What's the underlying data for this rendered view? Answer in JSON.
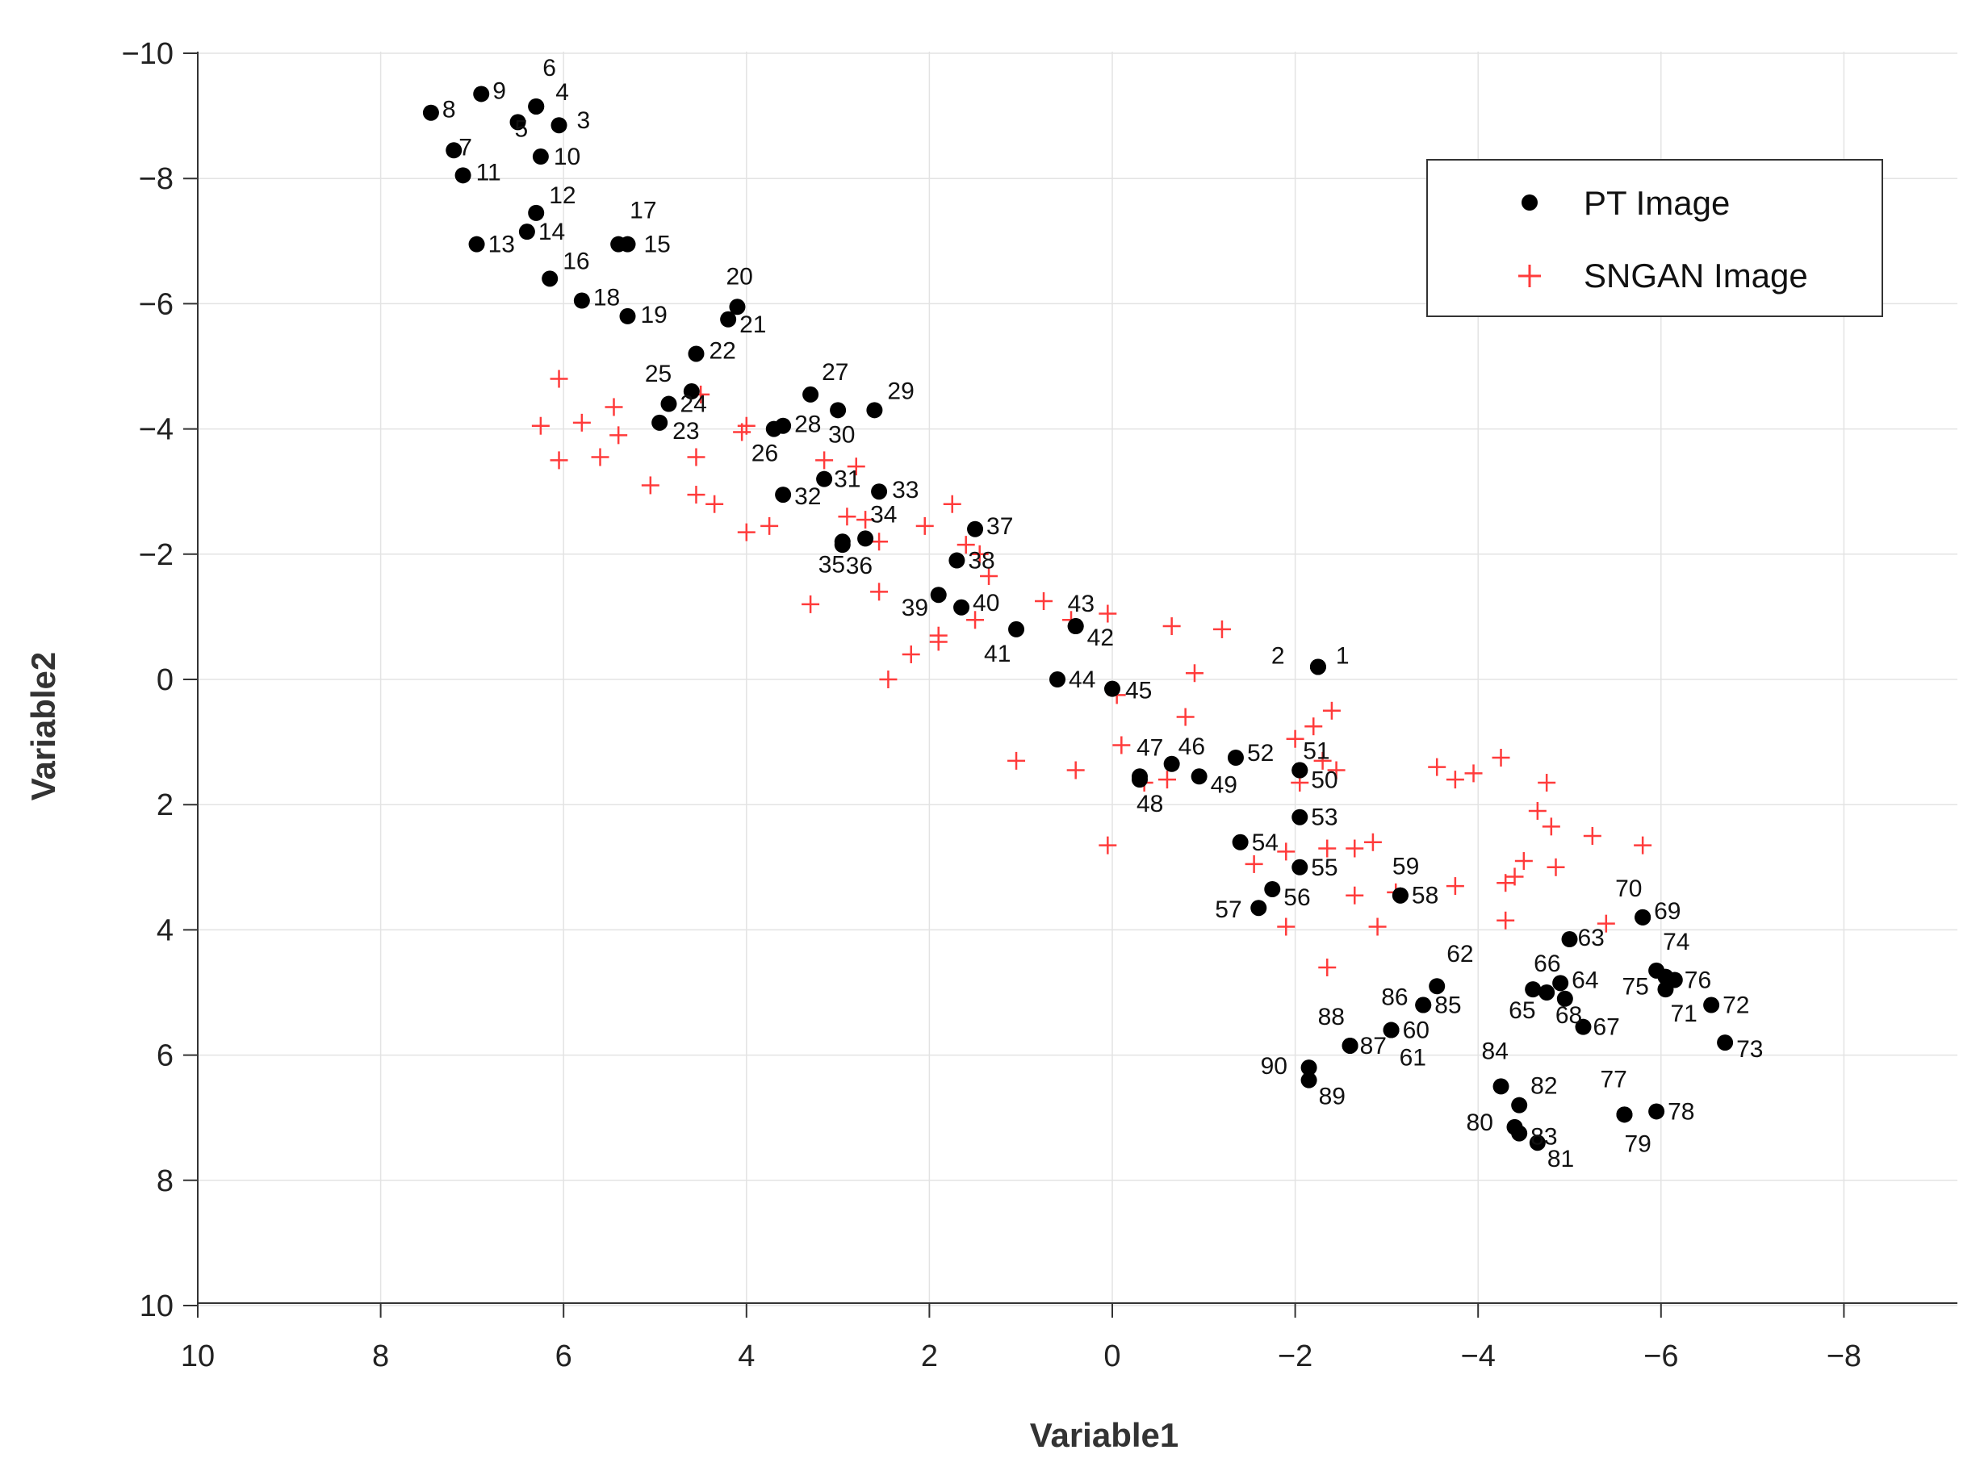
{
  "chart_data": {
    "type": "scatter",
    "xlabel": "Variable1",
    "ylabel": "Variable2",
    "xlim": [
      10,
      -9.2
    ],
    "ylim": [
      -10,
      10
    ],
    "x_reversed": true,
    "y_reversed": true,
    "grid": true,
    "legend_position": "top-right",
    "xticks": [
      10,
      8,
      6,
      4,
      2,
      0,
      -2,
      -4,
      -6,
      -8
    ],
    "yticks": [
      -10,
      -8,
      -6,
      -4,
      -2,
      0,
      2,
      4,
      6,
      8,
      10
    ],
    "xtick_labels": [
      "10",
      "8",
      "6",
      "4",
      "2",
      "0",
      "−2",
      "−4",
      "−6",
      "−8"
    ],
    "ytick_labels": [
      "−10",
      "−8",
      "−6",
      "−4",
      "−2",
      "0",
      "2",
      "4",
      "6",
      "8",
      "10"
    ],
    "series": [
      {
        "name": "PT Image",
        "marker": "dot",
        "color": "#000000",
        "points": [
          {
            "id": "1",
            "x": -2.25,
            "y": -0.2
          },
          {
            "id": "2",
            "x": -2.25,
            "y": -0.2
          },
          {
            "id": "3",
            "x": 6.05,
            "y": -8.85
          },
          {
            "id": "4",
            "x": 6.3,
            "y": -9.15
          },
          {
            "id": "5",
            "x": 6.5,
            "y": -8.9
          },
          {
            "id": "6",
            "x": 6.3,
            "y": -9.15
          },
          {
            "id": "7",
            "x": 7.2,
            "y": -8.45
          },
          {
            "id": "8",
            "x": 7.45,
            "y": -9.05
          },
          {
            "id": "9",
            "x": 6.9,
            "y": -9.35
          },
          {
            "id": "10",
            "x": 6.25,
            "y": -8.35
          },
          {
            "id": "11",
            "x": 7.1,
            "y": -8.05
          },
          {
            "id": "12",
            "x": 6.3,
            "y": -7.45
          },
          {
            "id": "13",
            "x": 6.95,
            "y": -6.95
          },
          {
            "id": "14",
            "x": 6.4,
            "y": -7.15
          },
          {
            "id": "15",
            "x": 5.3,
            "y": -6.95
          },
          {
            "id": "16",
            "x": 6.15,
            "y": -6.4
          },
          {
            "id": "17",
            "x": 5.4,
            "y": -6.95
          },
          {
            "id": "18",
            "x": 5.8,
            "y": -6.05
          },
          {
            "id": "19",
            "x": 5.3,
            "y": -5.8
          },
          {
            "id": "20",
            "x": 4.1,
            "y": -5.95
          },
          {
            "id": "21",
            "x": 4.2,
            "y": -5.75
          },
          {
            "id": "22",
            "x": 4.55,
            "y": -5.2
          },
          {
            "id": "23",
            "x": 4.95,
            "y": -4.1
          },
          {
            "id": "24",
            "x": 4.85,
            "y": -4.4
          },
          {
            "id": "25",
            "x": 4.6,
            "y": -4.6
          },
          {
            "id": "26",
            "x": 3.7,
            "y": -4.0
          },
          {
            "id": "27",
            "x": 3.3,
            "y": -4.55
          },
          {
            "id": "28",
            "x": 3.6,
            "y": -4.05
          },
          {
            "id": "29",
            "x": 2.6,
            "y": -4.3
          },
          {
            "id": "30",
            "x": 3.0,
            "y": -4.3
          },
          {
            "id": "31",
            "x": 3.15,
            "y": -3.2
          },
          {
            "id": "32",
            "x": 3.6,
            "y": -2.95
          },
          {
            "id": "33",
            "x": 2.55,
            "y": -3.0
          },
          {
            "id": "34",
            "x": 2.7,
            "y": -2.25
          },
          {
            "id": "35",
            "x": 2.95,
            "y": -2.2
          },
          {
            "id": "36",
            "x": 2.95,
            "y": -2.15
          },
          {
            "id": "37",
            "x": 1.5,
            "y": -2.4
          },
          {
            "id": "38",
            "x": 1.7,
            "y": -1.9
          },
          {
            "id": "39",
            "x": 1.9,
            "y": -1.35
          },
          {
            "id": "40",
            "x": 1.65,
            "y": -1.15
          },
          {
            "id": "41",
            "x": 1.05,
            "y": -0.8
          },
          {
            "id": "42",
            "x": 0.4,
            "y": -0.85
          },
          {
            "id": "43",
            "x": 0.4,
            "y": -0.85
          },
          {
            "id": "44",
            "x": 0.6,
            "y": 0.0
          },
          {
            "id": "45",
            "x": 0.0,
            "y": 0.15
          },
          {
            "id": "46",
            "x": -0.65,
            "y": 1.35
          },
          {
            "id": "47",
            "x": -0.3,
            "y": 1.55
          },
          {
            "id": "48",
            "x": -0.3,
            "y": 1.6
          },
          {
            "id": "49",
            "x": -0.95,
            "y": 1.55
          },
          {
            "id": "50",
            "x": -2.05,
            "y": 1.45
          },
          {
            "id": "51",
            "x": -2.05,
            "y": 1.45
          },
          {
            "id": "52",
            "x": -1.35,
            "y": 1.25
          },
          {
            "id": "53",
            "x": -2.05,
            "y": 2.2
          },
          {
            "id": "54",
            "x": -1.4,
            "y": 2.6
          },
          {
            "id": "55",
            "x": -2.05,
            "y": 3.0
          },
          {
            "id": "56",
            "x": -1.75,
            "y": 3.35
          },
          {
            "id": "57",
            "x": -1.6,
            "y": 3.65
          },
          {
            "id": "58",
            "x": -3.15,
            "y": 3.45
          },
          {
            "id": "59",
            "x": -3.15,
            "y": 3.45
          },
          {
            "id": "60",
            "x": -3.05,
            "y": 5.6
          },
          {
            "id": "61",
            "x": -3.05,
            "y": 5.6
          },
          {
            "id": "62",
            "x": -3.55,
            "y": 4.9
          },
          {
            "id": "63",
            "x": -5.0,
            "y": 4.15
          },
          {
            "id": "64",
            "x": -4.9,
            "y": 4.85
          },
          {
            "id": "65",
            "x": -4.6,
            "y": 4.95
          },
          {
            "id": "66",
            "x": -4.75,
            "y": 5.0
          },
          {
            "id": "67",
            "x": -5.15,
            "y": 5.55
          },
          {
            "id": "68",
            "x": -4.95,
            "y": 5.1
          },
          {
            "id": "69",
            "x": -5.8,
            "y": 3.8
          },
          {
            "id": "70",
            "x": -5.8,
            "y": 3.8
          },
          {
            "id": "71",
            "x": -6.05,
            "y": 4.95
          },
          {
            "id": "72",
            "x": -6.55,
            "y": 5.2
          },
          {
            "id": "73",
            "x": -6.7,
            "y": 5.8
          },
          {
            "id": "74",
            "x": -5.95,
            "y": 4.65
          },
          {
            "id": "75",
            "x": -6.05,
            "y": 4.75
          },
          {
            "id": "76",
            "x": -6.15,
            "y": 4.8
          },
          {
            "id": "77",
            "x": -5.6,
            "y": 6.95
          },
          {
            "id": "78",
            "x": -5.95,
            "y": 6.9
          },
          {
            "id": "79",
            "x": -5.6,
            "y": 6.95
          },
          {
            "id": "80",
            "x": -4.4,
            "y": 7.15
          },
          {
            "id": "81",
            "x": -4.65,
            "y": 7.4
          },
          {
            "id": "82",
            "x": -4.45,
            "y": 6.8
          },
          {
            "id": "83",
            "x": -4.45,
            "y": 7.25
          },
          {
            "id": "84",
            "x": -4.25,
            "y": 6.5
          },
          {
            "id": "85",
            "x": -3.4,
            "y": 5.2
          },
          {
            "id": "86",
            "x": -3.4,
            "y": 5.2
          },
          {
            "id": "87",
            "x": -2.6,
            "y": 5.85
          },
          {
            "id": "88",
            "x": -2.6,
            "y": 5.85
          },
          {
            "id": "89",
            "x": -2.15,
            "y": 6.4
          },
          {
            "id": "90",
            "x": -2.15,
            "y": 6.2
          }
        ]
      },
      {
        "name": "SNGAN Image",
        "marker": "plus",
        "color": "#ff3b3b",
        "points": [
          {
            "x": 6.05,
            "y": -4.8
          },
          {
            "x": 6.25,
            "y": -4.05
          },
          {
            "x": 5.8,
            "y": -4.1
          },
          {
            "x": 5.45,
            "y": -4.35
          },
          {
            "x": 5.4,
            "y": -3.9
          },
          {
            "x": 6.05,
            "y": -3.5
          },
          {
            "x": 5.6,
            "y": -3.55
          },
          {
            "x": 5.05,
            "y": -3.1
          },
          {
            "x": 4.55,
            "y": -3.55
          },
          {
            "x": 4.5,
            "y": -4.55
          },
          {
            "x": 4.55,
            "y": -2.95
          },
          {
            "x": 4.35,
            "y": -2.8
          },
          {
            "x": 4.05,
            "y": -3.95
          },
          {
            "x": 4.0,
            "y": -4.05
          },
          {
            "x": 3.75,
            "y": -2.45
          },
          {
            "x": 4.0,
            "y": -2.35
          },
          {
            "x": 3.15,
            "y": -3.5
          },
          {
            "x": 2.8,
            "y": -3.4
          },
          {
            "x": 2.9,
            "y": -2.6
          },
          {
            "x": 2.7,
            "y": -2.55
          },
          {
            "x": 2.55,
            "y": -2.2
          },
          {
            "x": 2.55,
            "y": -1.4
          },
          {
            "x": 3.3,
            "y": -1.2
          },
          {
            "x": 2.05,
            "y": -2.45
          },
          {
            "x": 1.75,
            "y": -2.8
          },
          {
            "x": 1.6,
            "y": -2.15
          },
          {
            "x": 1.45,
            "y": -2.0
          },
          {
            "x": 1.35,
            "y": -1.65
          },
          {
            "x": 1.5,
            "y": -0.95
          },
          {
            "x": 1.9,
            "y": -0.7
          },
          {
            "x": 1.9,
            "y": -0.6
          },
          {
            "x": 2.2,
            "y": -0.4
          },
          {
            "x": 2.45,
            "y": 0.0
          },
          {
            "x": 0.75,
            "y": -1.25
          },
          {
            "x": 0.45,
            "y": -0.95
          },
          {
            "x": 0.05,
            "y": -1.05
          },
          {
            "x": -0.65,
            "y": -0.85
          },
          {
            "x": -1.2,
            "y": -0.8
          },
          {
            "x": -0.9,
            "y": -0.1
          },
          {
            "x": -0.05,
            "y": 0.25
          },
          {
            "x": -0.8,
            "y": 0.6
          },
          {
            "x": 1.05,
            "y": 1.3
          },
          {
            "x": 0.4,
            "y": 1.45
          },
          {
            "x": -0.1,
            "y": 1.05
          },
          {
            "x": -0.35,
            "y": 1.65
          },
          {
            "x": -0.6,
            "y": 1.6
          },
          {
            "x": 0.05,
            "y": 2.65
          },
          {
            "x": -2.0,
            "y": 0.95
          },
          {
            "x": -2.2,
            "y": 0.75
          },
          {
            "x": -2.4,
            "y": 0.5
          },
          {
            "x": -2.3,
            "y": 1.3
          },
          {
            "x": -2.45,
            "y": 1.45
          },
          {
            "x": -2.05,
            "y": 1.65
          },
          {
            "x": -1.55,
            "y": 2.95
          },
          {
            "x": -1.9,
            "y": 2.75
          },
          {
            "x": -2.35,
            "y": 2.7
          },
          {
            "x": -2.65,
            "y": 2.7
          },
          {
            "x": -2.85,
            "y": 2.6
          },
          {
            "x": -2.65,
            "y": 3.45
          },
          {
            "x": -2.9,
            "y": 3.95
          },
          {
            "x": -3.1,
            "y": 3.4
          },
          {
            "x": -1.9,
            "y": 3.95
          },
          {
            "x": -2.35,
            "y": 4.6
          },
          {
            "x": -3.55,
            "y": 1.4
          },
          {
            "x": -3.75,
            "y": 1.6
          },
          {
            "x": -3.95,
            "y": 1.5
          },
          {
            "x": -4.25,
            "y": 1.25
          },
          {
            "x": -4.75,
            "y": 1.65
          },
          {
            "x": -4.65,
            "y": 2.1
          },
          {
            "x": -4.8,
            "y": 2.35
          },
          {
            "x": -5.25,
            "y": 2.5
          },
          {
            "x": -5.8,
            "y": 2.65
          },
          {
            "x": -3.75,
            "y": 3.3
          },
          {
            "x": -4.3,
            "y": 3.25
          },
          {
            "x": -4.4,
            "y": 3.15
          },
          {
            "x": -4.5,
            "y": 2.9
          },
          {
            "x": -4.85,
            "y": 3.0
          },
          {
            "x": -4.3,
            "y": 3.85
          },
          {
            "x": -5.4,
            "y": 3.9
          }
        ]
      }
    ]
  }
}
